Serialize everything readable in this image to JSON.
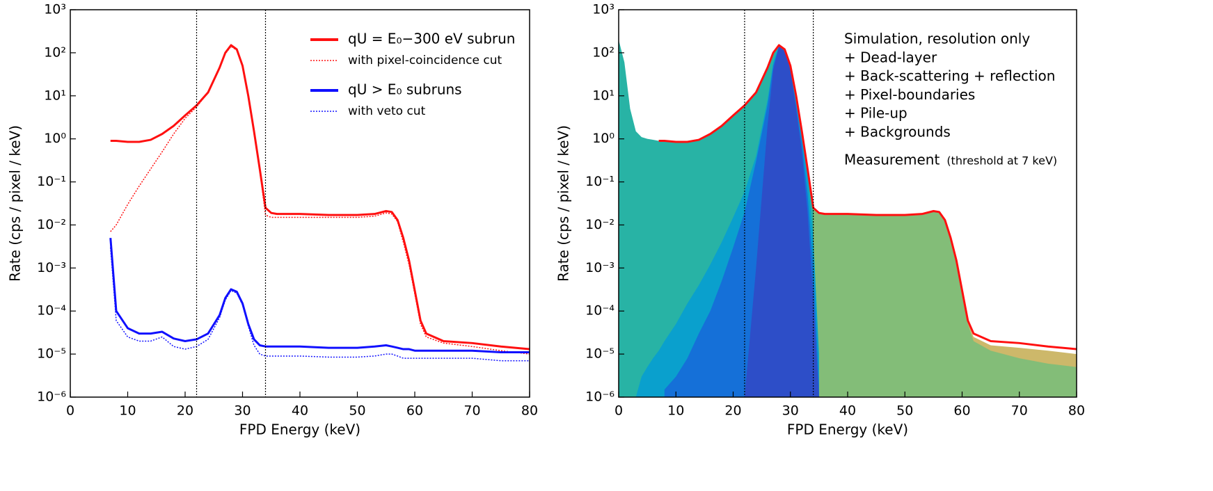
{
  "chart_data": [
    {
      "type": "line",
      "xlabel": "FPD Energy (keV)",
      "ylabel": "Rate (cps / pixel / keV)",
      "xlim": [
        0,
        80
      ],
      "xticks": [
        0,
        10,
        20,
        30,
        40,
        50,
        60,
        70,
        80
      ],
      "ylim": [
        1e-06,
        1000
      ],
      "log_y": true,
      "yticks": [
        {
          "value": 1e-06,
          "label": "10⁻⁶"
        },
        {
          "value": 1e-05,
          "label": "10⁻⁵"
        },
        {
          "value": 0.0001,
          "label": "10⁻⁴"
        },
        {
          "value": 0.001,
          "label": "10⁻³"
        },
        {
          "value": 0.01,
          "label": "10⁻²"
        },
        {
          "value": 0.1,
          "label": "10⁻¹"
        },
        {
          "value": 1,
          "label": "10⁰"
        },
        {
          "value": 10,
          "label": "10¹"
        },
        {
          "value": 100,
          "label": "10²"
        },
        {
          "value": 1000,
          "label": "10³"
        }
      ],
      "vlines": [
        22,
        34
      ],
      "legend": "upper right",
      "x": [
        7,
        8,
        10,
        12,
        14,
        16,
        18,
        20,
        22,
        24,
        26,
        27,
        28,
        29,
        30,
        31,
        32,
        33,
        34,
        35,
        36,
        40,
        45,
        50,
        53,
        55,
        56,
        57,
        58,
        59,
        60,
        61,
        62,
        65,
        70,
        75,
        80
      ],
      "series": [
        {
          "name": "qU = E₀−300 eV subrun",
          "color": "#ff1010",
          "style": "solid",
          "values": [
            0.9,
            0.9,
            0.85,
            0.85,
            0.95,
            1.3,
            2,
            3.5,
            6,
            12,
            45,
            100,
            150,
            120,
            50,
            10,
            1.5,
            0.2,
            0.025,
            0.019,
            0.018,
            0.018,
            0.017,
            0.017,
            0.018,
            0.021,
            0.02,
            0.013,
            0.005,
            0.0015,
            0.0003,
            6e-05,
            3e-05,
            2e-05,
            1.8e-05,
            1.5e-05,
            1.3e-05
          ]
        },
        {
          "name": "with pixel-coincidence cut",
          "color": "#ff1010",
          "style": "dotted",
          "values": [
            0.007,
            0.01,
            0.03,
            0.08,
            0.2,
            0.5,
            1.3,
            3,
            5.5,
            12,
            45,
            95,
            140,
            115,
            48,
            9,
            1.4,
            0.18,
            0.017,
            0.015,
            0.015,
            0.015,
            0.015,
            0.015,
            0.016,
            0.019,
            0.018,
            0.012,
            0.004,
            0.0012,
            0.00025,
            5e-05,
            2.5e-05,
            1.8e-05,
            1.5e-05,
            1.2e-05,
            1e-05
          ]
        },
        {
          "name": "qU > E₀ subruns",
          "color": "#1010ff",
          "style": "solid",
          "values": [
            0.005,
            0.0001,
            4e-05,
            3e-05,
            3e-05,
            3.3e-05,
            2.3e-05,
            2e-05,
            2.2e-05,
            3e-05,
            8e-05,
            0.0002,
            0.00032,
            0.00028,
            0.00015,
            5e-05,
            2.2e-05,
            1.6e-05,
            1.5e-05,
            1.5e-05,
            1.5e-05,
            1.5e-05,
            1.4e-05,
            1.4e-05,
            1.5e-05,
            1.6e-05,
            1.5e-05,
            1.4e-05,
            1.3e-05,
            1.3e-05,
            1.2e-05,
            1.2e-05,
            1.2e-05,
            1.2e-05,
            1.2e-05,
            1.1e-05,
            1.1e-05
          ]
        },
        {
          "name": "with veto cut",
          "color": "#1010ff",
          "style": "dotted",
          "values": [
            0.003,
            6e-05,
            2.5e-05,
            2e-05,
            2e-05,
            2.5e-05,
            1.5e-05,
            1.3e-05,
            1.5e-05,
            2.2e-05,
            7e-05,
            0.00018,
            0.0003,
            0.00026,
            0.00014,
            4.5e-05,
            1.6e-05,
            1e-05,
            9e-06,
            9e-06,
            9e-06,
            9e-06,
            8.5e-06,
            8.5e-06,
            9e-06,
            1e-05,
            1e-05,
            9e-06,
            8e-06,
            8e-06,
            8e-06,
            8e-06,
            8e-06,
            8e-06,
            8e-06,
            7e-06,
            7e-06
          ]
        }
      ]
    },
    {
      "type": "area",
      "xlabel": "FPD Energy (keV)",
      "ylabel": "Rate (cps / pixel / keV)",
      "xlim": [
        0,
        80
      ],
      "xticks": [
        0,
        10,
        20,
        30,
        40,
        50,
        60,
        70,
        80
      ],
      "ylim": [
        1e-06,
        1000
      ],
      "log_y": true,
      "yticks": [
        {
          "value": 1e-06,
          "label": "10⁻⁶"
        },
        {
          "value": 1e-05,
          "label": "10⁻⁵"
        },
        {
          "value": 0.0001,
          "label": "10⁻⁴"
        },
        {
          "value": 0.001,
          "label": "10⁻³"
        },
        {
          "value": 0.01,
          "label": "10⁻²"
        },
        {
          "value": 0.1,
          "label": "10⁻¹"
        },
        {
          "value": 1,
          "label": "10⁰"
        },
        {
          "value": 10,
          "label": "10¹"
        },
        {
          "value": 100,
          "label": "10²"
        },
        {
          "value": 1000,
          "label": "10³"
        }
      ],
      "vlines": [
        22,
        34
      ],
      "legend": "upper right",
      "annotation": "(threshold at 7 keV)",
      "x": [
        0,
        1,
        2,
        3,
        4,
        5,
        6,
        7,
        8,
        10,
        12,
        14,
        16,
        18,
        20,
        22,
        24,
        26,
        27,
        28,
        29,
        30,
        31,
        32,
        33,
        34,
        35,
        36,
        40,
        45,
        50,
        53,
        55,
        56,
        57,
        58,
        59,
        60,
        61,
        62,
        65,
        70,
        75,
        80
      ],
      "series": [
        {
          "name": "Simulation, resolution only",
          "color": "#2d4ec8",
          "style": "fill",
          "order": 5,
          "values": [
            null,
            null,
            null,
            null,
            null,
            null,
            null,
            null,
            null,
            null,
            null,
            null,
            null,
            null,
            null,
            1e-06,
            0.001,
            2,
            40,
            140,
            110,
            40,
            5,
            0.5,
            0.02,
            0.0002,
            1e-06,
            null,
            null,
            null,
            null,
            null,
            null,
            null,
            null,
            null,
            null,
            null,
            null,
            null,
            null,
            null,
            null,
            null
          ]
        },
        {
          "name": "+ Dead-layer",
          "color": "#1570d8",
          "style": "fill",
          "order": 4,
          "values": [
            null,
            null,
            null,
            null,
            null,
            null,
            null,
            null,
            1.5e-06,
            3e-06,
            8e-06,
            3e-05,
            0.0001,
            0.0005,
            0.003,
            0.02,
            0.3,
            6,
            50,
            140,
            110,
            40,
            6,
            0.8,
            0.05,
            0.001,
            2e-06,
            null,
            null,
            null,
            null,
            null,
            null,
            null,
            null,
            null,
            null,
            null,
            null,
            null,
            null,
            null,
            null,
            null
          ]
        },
        {
          "name": "+ Back-scattering + reflection",
          "color": "#0aa0cd",
          "style": "fill",
          "order": 3,
          "values": [
            null,
            null,
            null,
            1e-06,
            3e-06,
            5e-06,
            8e-06,
            1.2e-05,
            2e-05,
            5e-05,
            0.00015,
            0.0004,
            0.0012,
            0.004,
            0.015,
            0.06,
            0.4,
            8,
            60,
            150,
            120,
            50,
            10,
            1.5,
            0.15,
            0.005,
            1e-05,
            null,
            null,
            null,
            null,
            null,
            null,
            null,
            null,
            null,
            null,
            null,
            null,
            null,
            null,
            null,
            null,
            null
          ]
        },
        {
          "name": "+ Pixel-boundaries",
          "color": "#28b3a5",
          "style": "fill",
          "order": 2,
          "values": [
            200,
            60,
            5,
            1.5,
            1.1,
            1,
            0.95,
            0.9,
            0.9,
            0.85,
            0.85,
            0.95,
            1.3,
            2,
            3.5,
            6,
            12,
            45,
            100,
            150,
            120,
            50,
            10,
            1.5,
            0.2,
            0.02,
            null,
            null,
            null,
            null,
            null,
            null,
            null,
            null,
            null,
            null,
            null,
            null,
            null,
            null,
            null,
            null,
            null,
            null
          ]
        },
        {
          "name": "+ Pile-up",
          "color": "#83bd78",
          "style": "fill",
          "order": 1,
          "values": [
            null,
            null,
            null,
            null,
            null,
            null,
            null,
            null,
            null,
            null,
            null,
            null,
            null,
            null,
            null,
            null,
            null,
            null,
            null,
            null,
            null,
            null,
            null,
            null,
            0.2,
            0.025,
            0.019,
            0.018,
            0.018,
            0.017,
            0.017,
            0.018,
            0.021,
            0.02,
            0.013,
            0.005,
            0.0015,
            0.0003,
            5e-05,
            2e-05,
            1.2e-05,
            8e-06,
            6e-06,
            5e-06
          ]
        },
        {
          "name": "+ Backgrounds",
          "color": "#cdb86a",
          "style": "fill",
          "order": 0,
          "values": [
            null,
            null,
            null,
            null,
            null,
            null,
            null,
            null,
            null,
            null,
            null,
            null,
            null,
            null,
            null,
            null,
            null,
            null,
            null,
            null,
            null,
            null,
            null,
            null,
            null,
            null,
            null,
            null,
            null,
            null,
            null,
            null,
            null,
            null,
            null,
            0.005,
            0.0015,
            0.0003,
            5.5e-05,
            2.5e-05,
            1.6e-05,
            1.4e-05,
            1.2e-05,
            1e-05
          ]
        },
        {
          "name": "Measurement",
          "color": "#ff1010",
          "style": "solid",
          "order": 6,
          "values": [
            null,
            null,
            null,
            null,
            null,
            null,
            null,
            0.9,
            0.9,
            0.85,
            0.85,
            0.95,
            1.3,
            2,
            3.5,
            6,
            12,
            45,
            100,
            150,
            120,
            50,
            10,
            1.5,
            0.2,
            0.025,
            0.019,
            0.018,
            0.018,
            0.017,
            0.017,
            0.018,
            0.021,
            0.02,
            0.013,
            0.005,
            0.0015,
            0.0003,
            6e-05,
            3e-05,
            2e-05,
            1.8e-05,
            1.5e-05,
            1.3e-05
          ]
        }
      ]
    }
  ]
}
